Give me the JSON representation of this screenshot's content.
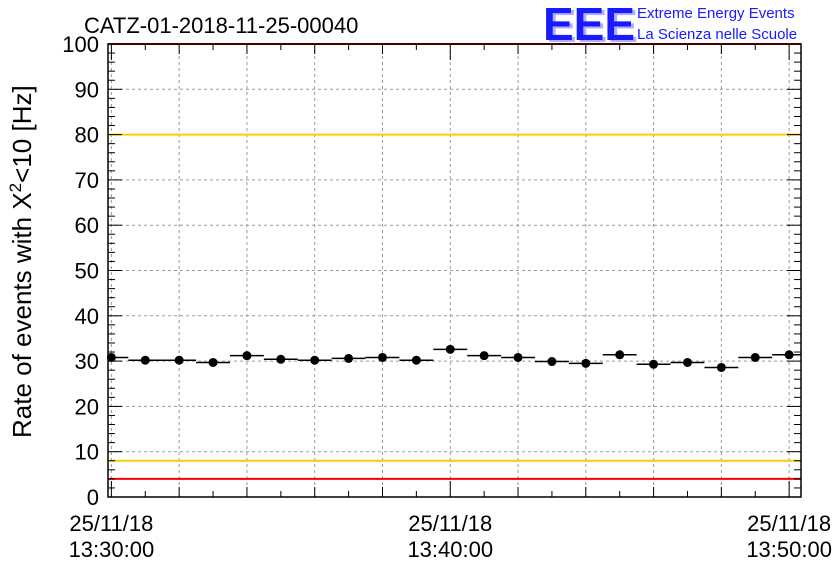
{
  "chart_data": {
    "type": "scatter",
    "title": "CATZ-01-2018-11-25-00040",
    "ylabel_main": "Rate of events with X",
    "ylabel_sup": "2",
    "ylabel_tail": "<10 [Hz]",
    "ylim": [
      0,
      100
    ],
    "yticks": [
      "0",
      "10",
      "20",
      "30",
      "40",
      "50",
      "60",
      "70",
      "80",
      "90",
      "100"
    ],
    "xticks": [
      {
        "date": "25/11/18",
        "time": "13:30:00",
        "minute": 0
      },
      {
        "date": "25/11/18",
        "time": "13:40:00",
        "minute": 10
      },
      {
        "date": "25/11/18",
        "time": "13:50:00",
        "minute": 20
      }
    ],
    "xlim_minutes": [
      -0.1,
      20.35
    ],
    "grid": true,
    "reference_lines": [
      {
        "value": 100,
        "color": "#ff0000"
      },
      {
        "value": 80,
        "color": "#ffcc00"
      },
      {
        "value": 8,
        "color": "#ffcc00"
      },
      {
        "value": 4,
        "color": "#ff0000"
      }
    ],
    "bin_width_minutes": 1,
    "points": [
      {
        "x": 0,
        "y": 30.8
      },
      {
        "x": 1,
        "y": 30.2
      },
      {
        "x": 2,
        "y": 30.2
      },
      {
        "x": 3,
        "y": 29.7
      },
      {
        "x": 4,
        "y": 31.2
      },
      {
        "x": 5,
        "y": 30.4
      },
      {
        "x": 6,
        "y": 30.2
      },
      {
        "x": 7,
        "y": 30.6
      },
      {
        "x": 8,
        "y": 30.8
      },
      {
        "x": 9,
        "y": 30.2
      },
      {
        "x": 10,
        "y": 32.6
      },
      {
        "x": 11,
        "y": 31.2
      },
      {
        "x": 12,
        "y": 30.8
      },
      {
        "x": 13,
        "y": 29.9
      },
      {
        "x": 14,
        "y": 29.5
      },
      {
        "x": 15,
        "y": 31.4
      },
      {
        "x": 16,
        "y": 29.3
      },
      {
        "x": 17,
        "y": 29.7
      },
      {
        "x": 18,
        "y": 28.6
      },
      {
        "x": 19,
        "y": 30.8
      },
      {
        "x": 20,
        "y": 31.4
      }
    ],
    "marker_color": "#000000"
  },
  "logo": {
    "mark": "EEE",
    "line1": "Extreme Energy Events",
    "line2": "La Scienza nelle Scuole"
  }
}
